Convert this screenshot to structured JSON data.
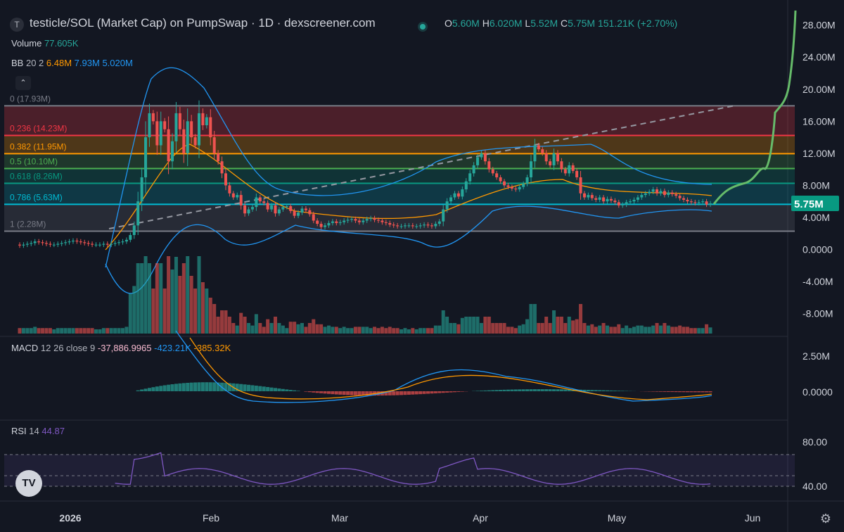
{
  "header": {
    "symbol_icon": "circle-t",
    "title": "testicle/SOL (Market Cap) on PumpSwap · 1D · dexscreener.com",
    "o_label": "O",
    "o_value": "5.60M",
    "h_label": "H",
    "h_value": "6.020M",
    "l_label": "L",
    "l_value": "5.52M",
    "c_label": "C",
    "c_value": "5.75M",
    "change": "151.21K (+2.70%)"
  },
  "volume_label": "Volume",
  "volume_value": "77.605K",
  "bb": {
    "label": "BB",
    "params": "20 2",
    "v1": "6.48M",
    "v2": "7.93M",
    "v3": "5.020M"
  },
  "macd": {
    "label": "MACD",
    "params": "12 26 close 9",
    "v1": "-37,886.9965",
    "v2": "-423.21K",
    "v3": "-385.32K"
  },
  "rsi": {
    "label": "RSI",
    "params": "14",
    "value": "44.87"
  },
  "price_tag": "5.75M",
  "colors": {
    "bg": "#131722",
    "up": "#26a69a",
    "down": "#ef5350",
    "bb": "#2196f3",
    "ma": "#ff9800",
    "rsi": "#7e57c2",
    "arrow": "#66bb6a"
  },
  "chart_data": {
    "type": "candlestick",
    "x_axis": {
      "ticks": [
        "2026",
        "Feb",
        "Mar",
        "Apr",
        "May",
        "Jun"
      ]
    },
    "y_axis": {
      "ticks": [
        "28.00M",
        "24.00M",
        "20.00M",
        "16.00M",
        "12.00M",
        "8.00M",
        "4.00M",
        "0.0000",
        "-4.00M",
        "-8.00M"
      ],
      "ylim": [
        -10.5,
        30.5
      ]
    },
    "fib_levels": [
      {
        "label": "0 (17.93M)",
        "value": 17.93,
        "color": "#787b86"
      },
      {
        "label": "0.236 (14.23M)",
        "value": 14.23,
        "color": "#f23645"
      },
      {
        "label": "0.382 (11.95M)",
        "value": 11.95,
        "color": "#ff9800"
      },
      {
        "label": "0.5 (10.10M)",
        "value": 10.1,
        "color": "#4caf50"
      },
      {
        "label": "0.618 (8.26M)",
        "value": 8.26,
        "color": "#089981"
      },
      {
        "label": "0.786 (5.63M)",
        "value": 5.63,
        "color": "#00bcd4"
      },
      {
        "label": "1 (2.28M)",
        "value": 2.28,
        "color": "#787b86"
      }
    ],
    "close": [
      0.5,
      0.6,
      0.7,
      0.8,
      1.0,
      0.9,
      0.8,
      0.7,
      0.6,
      0.6,
      0.7,
      0.8,
      0.9,
      1.0,
      1.1,
      1.0,
      0.9,
      0.8,
      0.7,
      0.6,
      0.6,
      0.6,
      0.7,
      0.6,
      0.7,
      0.8,
      0.9,
      1.0,
      1.2,
      1.8,
      3.0,
      6.0,
      9.0,
      14.0,
      17.0,
      16.0,
      13.0,
      16.0,
      15.0,
      11.0,
      13.5,
      17.0,
      15.0,
      12.0,
      16.0,
      14.0,
      13.0,
      17.0,
      15.5,
      16.5,
      14.0,
      12.0,
      11.0,
      9.5,
      8.0,
      7.0,
      6.5,
      6.8,
      5.5,
      4.5,
      5.0,
      5.3,
      6.5,
      6.0,
      5.8,
      5.0,
      5.5,
      4.5,
      5.0,
      5.3,
      5.4,
      4.8,
      4.2,
      4.6,
      5.1,
      4.9,
      4.4,
      3.6,
      3.2,
      2.8,
      3.0,
      3.3,
      3.5,
      3.3,
      3.4,
      3.6,
      3.7,
      3.8,
      3.6,
      3.4,
      3.6,
      3.8,
      3.9,
      3.7,
      3.6,
      3.4,
      3.3,
      3.1,
      3.0,
      2.9,
      2.9,
      3.0,
      3.0,
      2.9,
      2.9,
      3.0,
      3.1,
      3.0,
      2.9,
      3.2,
      3.5,
      5.0,
      6.0,
      6.5,
      7.0,
      6.6,
      7.5,
      8.5,
      9.5,
      10.5,
      11.5,
      12.0,
      11.0,
      10.0,
      9.5,
      9.0,
      8.5,
      8.0,
      7.8,
      7.6,
      7.5,
      7.8,
      8.2,
      9.0,
      11.0,
      13.0,
      12.5,
      12.0,
      11.0,
      10.5,
      12.0,
      11.0,
      10.0,
      9.5,
      10.5,
      9.8,
      9.0,
      7.0,
      6.5,
      6.8,
      6.4,
      6.2,
      6.5,
      6.0,
      6.3,
      6.1,
      5.9,
      5.5,
      5.6,
      5.9,
      6.0,
      6.2,
      6.5,
      6.8,
      7.0,
      7.2,
      7.5,
      7.0,
      7.3,
      6.8,
      7.1,
      6.9,
      6.7,
      6.4,
      6.2,
      6.0,
      5.9,
      5.8,
      5.9,
      6.0,
      5.6,
      5.75
    ],
    "open": [
      0.6,
      0.5,
      0.6,
      0.7,
      0.8,
      1.0,
      0.9,
      0.8,
      0.7,
      0.6,
      0.6,
      0.7,
      0.8,
      0.9,
      1.0,
      1.1,
      1.0,
      0.9,
      0.8,
      0.7,
      0.6,
      0.6,
      0.6,
      0.7,
      0.6,
      0.7,
      0.8,
      0.9,
      1.0,
      1.2,
      1.8,
      3.0,
      6.0,
      9.0,
      14.0,
      17.0,
      16.0,
      13.0,
      16.0,
      15.0,
      11.0,
      13.5,
      17.0,
      15.0,
      12.0,
      16.0,
      14.0,
      13.0,
      17.0,
      15.5,
      16.5,
      14.0,
      12.0,
      11.0,
      9.5,
      8.0,
      7.0,
      6.5,
      6.8,
      5.5,
      4.5,
      5.0,
      5.3,
      6.5,
      6.0,
      5.8,
      5.0,
      5.5,
      4.5,
      5.0,
      5.3,
      5.4,
      4.8,
      4.2,
      4.6,
      5.1,
      4.9,
      4.4,
      3.6,
      3.2,
      2.8,
      3.0,
      3.3,
      3.5,
      3.3,
      3.4,
      3.6,
      3.7,
      3.8,
      3.6,
      3.4,
      3.6,
      3.8,
      3.9,
      3.7,
      3.6,
      3.4,
      3.3,
      3.1,
      3.0,
      2.9,
      2.9,
      3.0,
      3.0,
      2.9,
      2.9,
      3.0,
      3.1,
      3.0,
      2.9,
      3.2,
      3.5,
      5.0,
      6.0,
      6.5,
      7.0,
      6.6,
      7.5,
      8.5,
      9.5,
      10.5,
      11.5,
      12.0,
      11.0,
      10.0,
      9.5,
      9.0,
      8.5,
      8.0,
      7.8,
      7.6,
      7.5,
      7.8,
      8.2,
      9.0,
      11.0,
      13.0,
      12.5,
      12.0,
      11.0,
      10.5,
      12.0,
      11.0,
      10.0,
      9.5,
      10.5,
      9.8,
      9.0,
      7.0,
      6.5,
      6.8,
      6.4,
      6.2,
      6.5,
      6.0,
      6.3,
      6.1,
      5.9,
      5.5,
      5.6,
      5.9,
      6.0,
      6.2,
      6.5,
      6.8,
      7.0,
      7.2,
      7.5,
      7.0,
      7.3,
      6.8,
      7.1,
      6.9,
      6.7,
      6.4,
      6.2,
      6.0,
      5.9,
      5.8,
      5.9,
      6.0,
      5.6
    ]
  }
}
